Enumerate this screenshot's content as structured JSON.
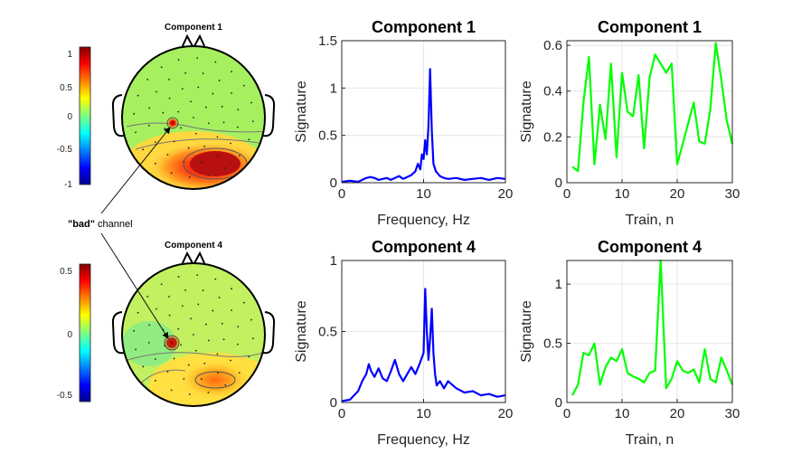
{
  "annotation": {
    "bad_label_bold": "\"bad\"",
    "bad_label_rest": " channel"
  },
  "topomaps": [
    {
      "title": "Component 1",
      "colorbar_ticks": [
        "1",
        "0.5",
        "0",
        "-0.5",
        "-1"
      ]
    },
    {
      "title": "Component 4",
      "colorbar_ticks": [
        "0.5",
        "0",
        "-0.5"
      ]
    }
  ],
  "chart_data": [
    {
      "type": "line",
      "title": "Component 1",
      "xlabel": "Frequency, Hz",
      "ylabel": "Signature",
      "xlim": [
        0,
        20
      ],
      "ylim": [
        0,
        1.5
      ],
      "xticks": [
        0,
        10,
        20
      ],
      "yticks": [
        0,
        0.5,
        1,
        1.5
      ],
      "xticklabels": [
        "0",
        "10",
        "20"
      ],
      "yticklabels": [
        "0",
        "0.5",
        "1",
        "1.5"
      ],
      "series": [
        {
          "name": "spectrum",
          "color": "#0000ff",
          "x": [
            0,
            1,
            2,
            3,
            3.5,
            4,
            4.5,
            5,
            5.5,
            6,
            6.5,
            7,
            7.5,
            8,
            8.5,
            9,
            9.3,
            9.6,
            9.8,
            10,
            10.2,
            10.4,
            10.6,
            10.8,
            11,
            11.2,
            11.5,
            12,
            12.5,
            13,
            14,
            15,
            16,
            17,
            18,
            19,
            20
          ],
          "y": [
            0.01,
            0.02,
            0.01,
            0.05,
            0.06,
            0.05,
            0.03,
            0.04,
            0.05,
            0.03,
            0.05,
            0.07,
            0.04,
            0.06,
            0.08,
            0.12,
            0.2,
            0.14,
            0.3,
            0.25,
            0.45,
            0.3,
            0.6,
            1.2,
            0.55,
            0.2,
            0.12,
            0.07,
            0.05,
            0.04,
            0.05,
            0.03,
            0.04,
            0.05,
            0.03,
            0.05,
            0.04
          ]
        }
      ]
    },
    {
      "type": "line",
      "title": "Component 1",
      "xlabel": "Train, n",
      "ylabel": "Signature",
      "xlim": [
        0,
        30
      ],
      "ylim": [
        0,
        0.62
      ],
      "xticks": [
        0,
        10,
        20,
        30
      ],
      "yticks": [
        0,
        0.2,
        0.4,
        0.6
      ],
      "xticklabels": [
        "0",
        "10",
        "20",
        "30"
      ],
      "yticklabels": [
        "0",
        "0.2",
        "0.4",
        "0.6"
      ],
      "series": [
        {
          "name": "train",
          "color": "#00ff00",
          "x": [
            1,
            2,
            3,
            4,
            5,
            6,
            7,
            8,
            9,
            10,
            11,
            12,
            13,
            14,
            15,
            16,
            17,
            18,
            19,
            20,
            21,
            22,
            23,
            24,
            25,
            26,
            27,
            28,
            29,
            30
          ],
          "y": [
            0.07,
            0.05,
            0.35,
            0.55,
            0.08,
            0.34,
            0.19,
            0.52,
            0.11,
            0.48,
            0.31,
            0.29,
            0.47,
            0.15,
            0.46,
            0.56,
            0.52,
            0.48,
            0.52,
            0.08,
            0.17,
            0.26,
            0.35,
            0.18,
            0.17,
            0.32,
            0.61,
            0.45,
            0.27,
            0.17
          ]
        }
      ]
    },
    {
      "type": "line",
      "title": "Component 4",
      "xlabel": "Frequency, Hz",
      "ylabel": "Signature",
      "xlim": [
        0,
        20
      ],
      "ylim": [
        0,
        1
      ],
      "xticks": [
        0,
        10,
        20
      ],
      "yticks": [
        0,
        0.5,
        1
      ],
      "xticklabels": [
        "0",
        "10",
        "20"
      ],
      "yticklabels": [
        "0",
        "0.5",
        "1"
      ],
      "series": [
        {
          "name": "spectrum",
          "color": "#0000ff",
          "x": [
            0,
            1,
            1.5,
            2,
            2.5,
            3,
            3.3,
            3.6,
            4,
            4.5,
            5,
            5.5,
            6,
            6.5,
            7,
            7.5,
            8,
            8.5,
            9,
            9.5,
            10,
            10.2,
            10.4,
            10.6,
            10.8,
            11,
            11.2,
            11.4,
            11.6,
            12,
            12.5,
            13,
            14,
            15,
            16,
            17,
            18,
            19,
            20
          ],
          "y": [
            0.01,
            0.02,
            0.05,
            0.08,
            0.15,
            0.2,
            0.27,
            0.22,
            0.18,
            0.24,
            0.17,
            0.15,
            0.22,
            0.3,
            0.2,
            0.15,
            0.2,
            0.25,
            0.2,
            0.27,
            0.35,
            0.8,
            0.5,
            0.3,
            0.45,
            0.66,
            0.35,
            0.2,
            0.12,
            0.15,
            0.1,
            0.15,
            0.1,
            0.07,
            0.08,
            0.05,
            0.06,
            0.04,
            0.05
          ]
        }
      ]
    },
    {
      "type": "line",
      "title": "Component 4",
      "xlabel": "Train, n",
      "ylabel": "Signature",
      "xlim": [
        0,
        30
      ],
      "ylim": [
        0,
        1.2
      ],
      "xticks": [
        0,
        10,
        20,
        30
      ],
      "yticks": [
        0,
        0.5,
        1
      ],
      "xticklabels": [
        "0",
        "10",
        "20",
        "30"
      ],
      "yticklabels": [
        "0",
        "0.5",
        "1"
      ],
      "series": [
        {
          "name": "train",
          "color": "#00ff00",
          "x": [
            1,
            2,
            3,
            4,
            5,
            6,
            7,
            8,
            9,
            10,
            11,
            12,
            13,
            14,
            15,
            16,
            17,
            18,
            19,
            20,
            21,
            22,
            23,
            24,
            25,
            26,
            27,
            28,
            29,
            30
          ],
          "y": [
            0.06,
            0.15,
            0.42,
            0.4,
            0.5,
            0.15,
            0.3,
            0.38,
            0.35,
            0.45,
            0.25,
            0.22,
            0.2,
            0.17,
            0.25,
            0.27,
            1.2,
            0.12,
            0.2,
            0.35,
            0.27,
            0.25,
            0.28,
            0.17,
            0.45,
            0.2,
            0.17,
            0.38,
            0.27,
            0.15
          ]
        }
      ]
    }
  ]
}
